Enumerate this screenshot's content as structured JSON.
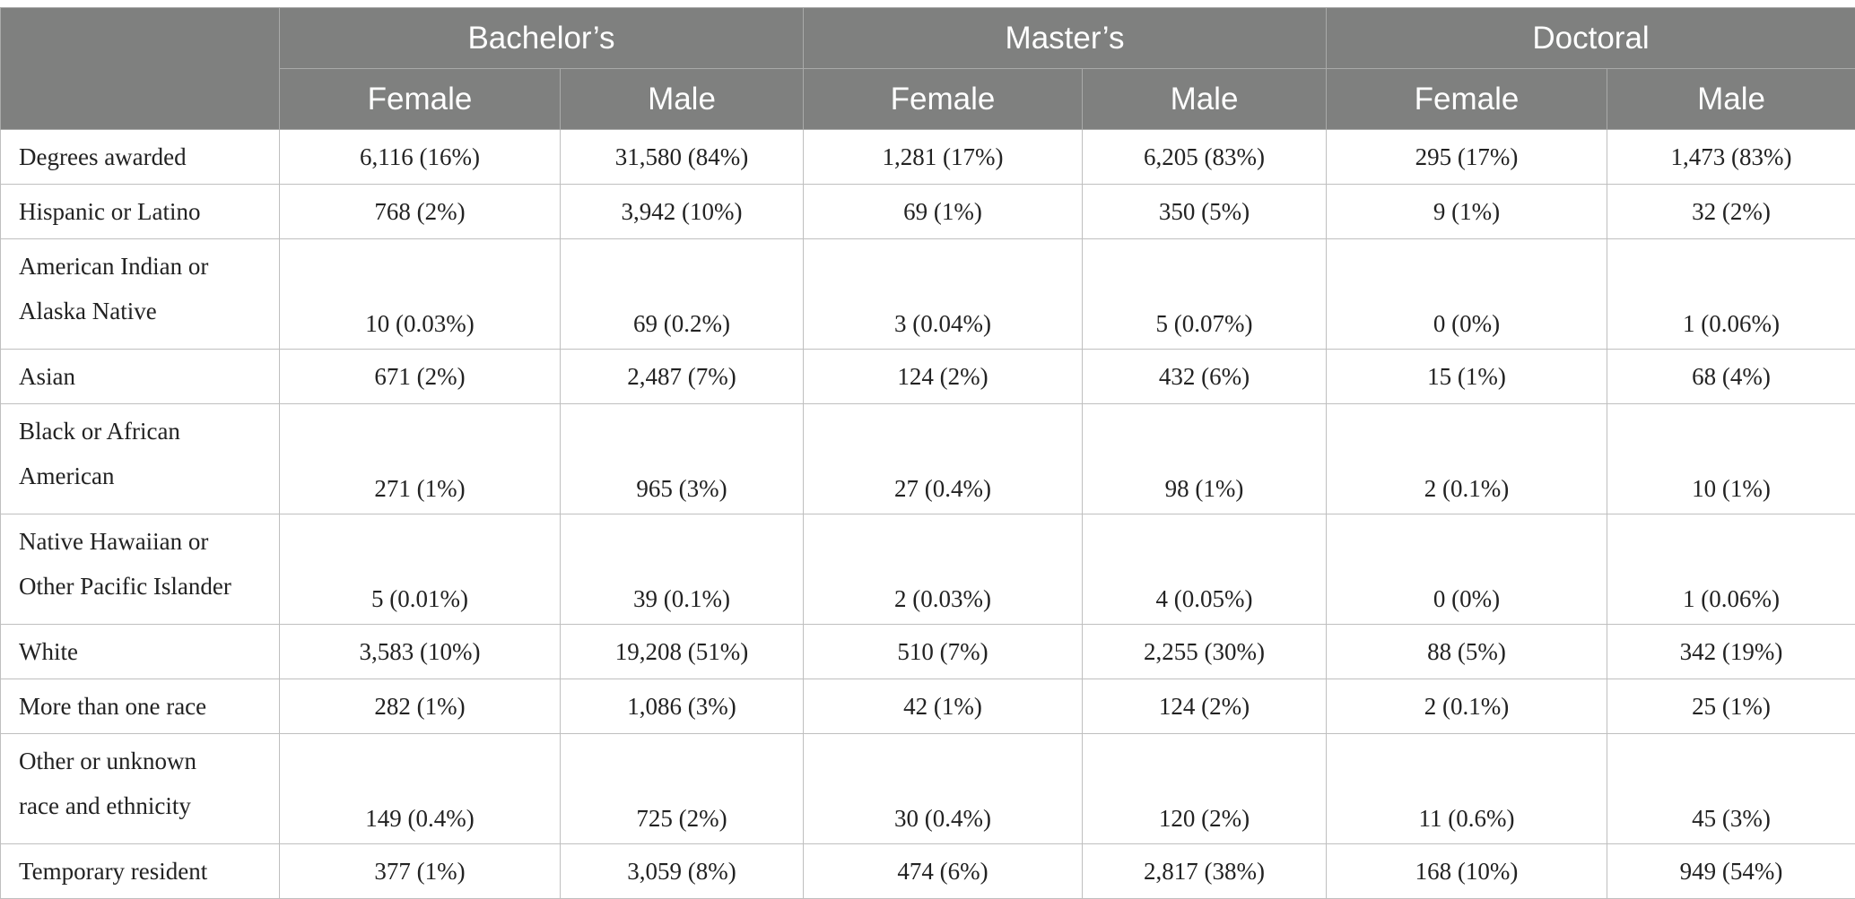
{
  "header": {
    "groups": [
      "Bachelor’s",
      "Master’s",
      "Doctoral"
    ],
    "subs": [
      "Female",
      "Male",
      "Female",
      "Male",
      "Female",
      "Male"
    ]
  },
  "rows": [
    {
      "label": "Degrees awarded",
      "cells": [
        "6,116 (16%)",
        "31,580 (84%)",
        "1,281 (17%)",
        "6,205 (83%)",
        "295 (17%)",
        "1,473 (83%)"
      ]
    },
    {
      "label": "Hispanic or Latino",
      "cells": [
        "768 (2%)",
        "3,942 (10%)",
        "69 (1%)",
        "350 (5%)",
        "9 (1%)",
        "32 (2%)"
      ]
    },
    {
      "label_lines": [
        "American Indian or",
        "Alaska Native"
      ],
      "cells": [
        "10 (0.03%)",
        "69 (0.2%)",
        "3 (0.04%)",
        "5 (0.07%)",
        "0 (0%)",
        "1 (0.06%)"
      ]
    },
    {
      "label": "Asian",
      "cells": [
        "671 (2%)",
        "2,487 (7%)",
        "124 (2%)",
        "432 (6%)",
        "15 (1%)",
        "68 (4%)"
      ]
    },
    {
      "label_lines": [
        "Black or African",
        "American"
      ],
      "cells": [
        "271 (1%)",
        "965 (3%)",
        "27 (0.4%)",
        "98 (1%)",
        "2 (0.1%)",
        "10 (1%)"
      ]
    },
    {
      "label_lines": [
        "Native Hawaiian or",
        "Other Pacific Islander"
      ],
      "cells": [
        "5 (0.01%)",
        "39 (0.1%)",
        "2 (0.03%)",
        "4 (0.05%)",
        "0 (0%)",
        "1 (0.06%)"
      ]
    },
    {
      "label": "White",
      "cells": [
        "3,583 (10%)",
        "19,208 (51%)",
        "510 (7%)",
        "2,255 (30%)",
        "88 (5%)",
        "342 (19%)"
      ]
    },
    {
      "label": "More than one race",
      "cells": [
        "282 (1%)",
        "1,086 (3%)",
        "42 (1%)",
        "124 (2%)",
        "2 (0.1%)",
        "25 (1%)"
      ]
    },
    {
      "label_lines": [
        "Other or unknown",
        "race and ethnicity"
      ],
      "cells": [
        "149 (0.4%)",
        "725 (2%)",
        "30 (0.4%)",
        "120 (2%)",
        "11 (0.6%)",
        "45 (3%)"
      ]
    },
    {
      "label": "Temporary resident",
      "cells": [
        "377 (1%)",
        "3,059 (8%)",
        "474 (6%)",
        "2,817 (38%)",
        "168 (10%)",
        "949 (54%)"
      ]
    }
  ]
}
